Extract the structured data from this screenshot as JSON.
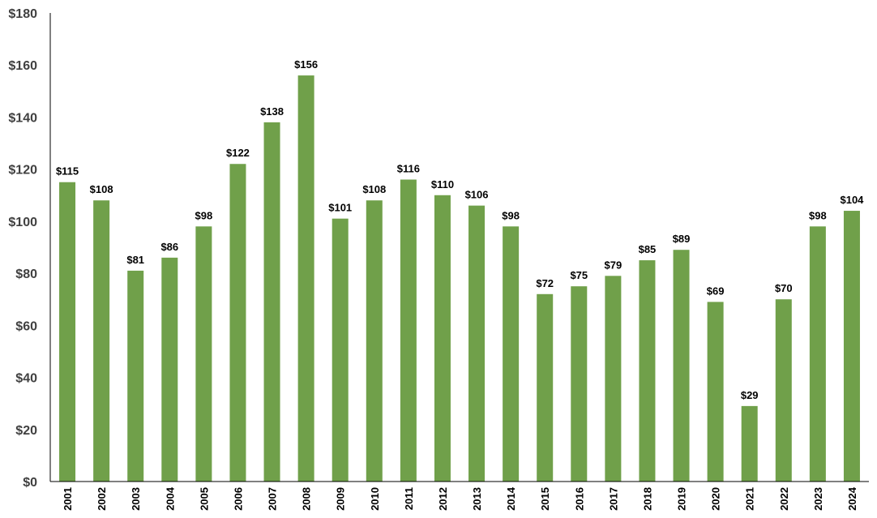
{
  "chart_data": {
    "type": "bar",
    "title": "",
    "xlabel": "",
    "ylabel": "",
    "categories": [
      "2001",
      "2002",
      "2003",
      "2004",
      "2005",
      "2006",
      "2007",
      "2008",
      "2009",
      "2010",
      "2011",
      "2012",
      "2013",
      "2014",
      "2015",
      "2016",
      "2017",
      "2018",
      "2019",
      "2020",
      "2021",
      "2022",
      "2023",
      "2024"
    ],
    "values": [
      115,
      108,
      81,
      86,
      98,
      122,
      138,
      156,
      101,
      108,
      116,
      110,
      106,
      98,
      72,
      75,
      79,
      85,
      89,
      69,
      29,
      70,
      98,
      104
    ],
    "data_labels": [
      "$115",
      "$108",
      "$81",
      "$86",
      "$98",
      "$122",
      "$138",
      "$156",
      "$101",
      "$108",
      "$116",
      "$110",
      "$106",
      "$98",
      "$72",
      "$75",
      "$79",
      "$85",
      "$89",
      "$69",
      "$29",
      "$70",
      "$98",
      "$104"
    ],
    "ylim": [
      0,
      180
    ],
    "yticks": [
      0,
      20,
      40,
      60,
      80,
      100,
      120,
      140,
      160,
      180
    ],
    "ytick_labels": [
      "$0",
      "$20",
      "$40",
      "$60",
      "$80",
      "$100",
      "$120",
      "$140",
      "$160",
      "$180"
    ],
    "grid": false,
    "legend": "none",
    "bar_color": "#70a04a"
  }
}
